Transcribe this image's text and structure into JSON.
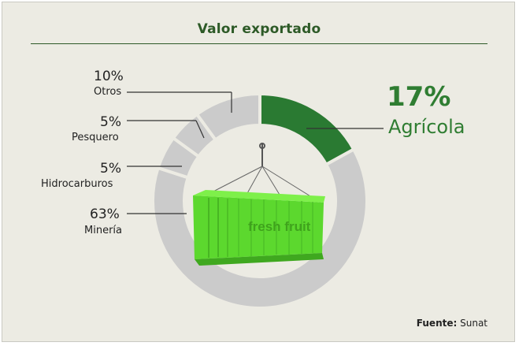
{
  "title": "Valor exportado",
  "source": {
    "label": "Fuente:",
    "value": "Sunat"
  },
  "chart_data": {
    "type": "pie",
    "title": "Valor exportado",
    "slices": [
      {
        "label": "Agrícola",
        "value": 17,
        "display": "17%",
        "color": "#2a7a32"
      },
      {
        "label": "Minería",
        "value": 63,
        "display": "63%",
        "color": "#cbcbcb"
      },
      {
        "label": "Hidrocarburos",
        "value": 5,
        "display": "5%",
        "color": "#cbcbcb"
      },
      {
        "label": "Pesquero",
        "value": 5,
        "display": "5%",
        "color": "#cbcbcb"
      },
      {
        "label": "Otros",
        "value": 10,
        "display": "10%",
        "color": "#cbcbcb"
      }
    ],
    "donut": true,
    "center_image": "green-container-icon",
    "container_text": "fresh fruit"
  }
}
